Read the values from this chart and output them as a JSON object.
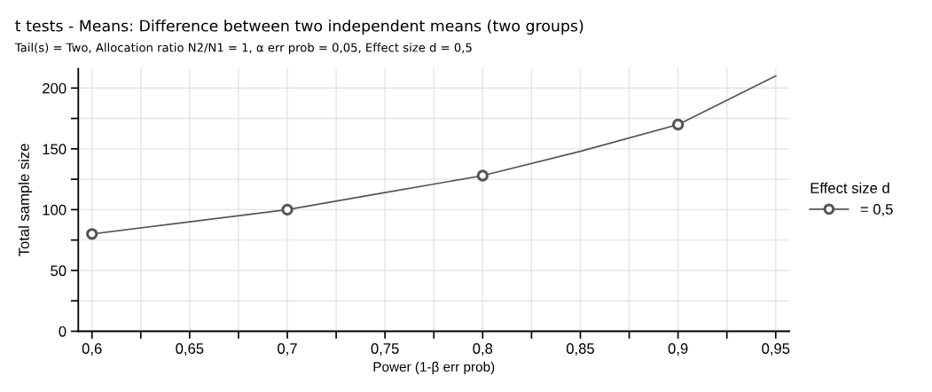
{
  "chart_data": {
    "type": "line",
    "title": "t tests - Means: Difference between two independent means (two groups)",
    "subtitle": "Tail(s) = Two, Allocation ratio N2/N1 = 1, α err prob = 0,05, Effect size d = 0,5",
    "xlabel": "Power (1-β err prob)",
    "ylabel": "Total sample size",
    "legend_title": "Effect size d",
    "series": [
      {
        "name": "= 0,5",
        "marker": "none",
        "color": "#555555",
        "x": [
          0.6,
          0.65,
          0.7,
          0.75,
          0.8,
          0.85,
          0.9,
          0.95
        ],
        "values": [
          80,
          90,
          100,
          114,
          128,
          148,
          170,
          210
        ]
      },
      {
        "type": "scatter",
        "marker": "circle",
        "color": "#555555",
        "x": [
          0.6,
          0.7,
          0.8,
          0.9
        ],
        "values": [
          80,
          100,
          128,
          170
        ]
      }
    ],
    "legend": "right",
    "grid": true,
    "xlim": [
      0.593,
      0.957
    ],
    "ylim": [
      0,
      216
    ],
    "xticks": [
      {
        "value": 0.6,
        "label": "0,6"
      },
      {
        "value": 0.625,
        "label": null
      },
      {
        "value": 0.65,
        "label": "0,65"
      },
      {
        "value": 0.675,
        "label": null
      },
      {
        "value": 0.7,
        "label": "0,7"
      },
      {
        "value": 0.725,
        "label": null
      },
      {
        "value": 0.75,
        "label": "0,75"
      },
      {
        "value": 0.775,
        "label": null
      },
      {
        "value": 0.8,
        "label": "0,8"
      },
      {
        "value": 0.825,
        "label": null
      },
      {
        "value": 0.85,
        "label": "0,85"
      },
      {
        "value": 0.875,
        "label": null
      },
      {
        "value": 0.9,
        "label": "0,9"
      },
      {
        "value": 0.925,
        "label": null
      },
      {
        "value": 0.95,
        "label": "0,95"
      }
    ],
    "yticks": [
      0,
      {
        "value": 25,
        "label": null
      },
      50,
      {
        "value": 75,
        "label": null
      },
      100,
      {
        "value": 125,
        "label": null
      },
      150,
      {
        "value": 175,
        "label": null
      },
      200
    ]
  }
}
